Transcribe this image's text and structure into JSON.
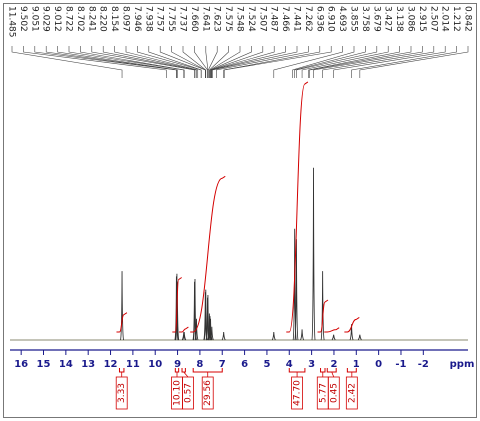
{
  "chart_data": {
    "type": "nmr",
    "x_label": "ppm",
    "xlim": [
      16.5,
      -4
    ],
    "xticks": [
      16,
      15,
      14,
      13,
      12,
      11,
      10,
      9,
      8,
      7,
      6,
      5,
      4,
      3,
      2,
      1,
      0,
      -1,
      -2
    ],
    "ylim": [
      0,
      100
    ],
    "peak_labels": [
      11.485,
      9.502,
      9.051,
      9.029,
      9.012,
      8.722,
      8.702,
      8.241,
      {
        "value": 8.22,
        "label": "8.220"
      },
      8.154,
      8.097,
      7.946,
      7.938,
      7.757,
      7.755,
      7.737,
      {
        "value": 7.66,
        "label": "7.660"
      },
      7.641,
      7.623,
      7.575,
      7.548,
      7.524,
      7.507,
      7.487,
      7.466,
      7.441,
      7.262,
      6.936,
      {
        "value": 6.91,
        "label": "6.910"
      },
      4.693,
      3.855,
      3.758,
      3.679,
      3.427,
      3.138,
      3.086,
      2.915,
      2.507,
      2.014,
      1.212,
      0.842
    ],
    "peaks": {
      "color": "#333333",
      "x": [
        11.485,
        9.051,
        9.029,
        9.012,
        8.722,
        8.702,
        8.241,
        8.22,
        8.154,
        7.757,
        7.737,
        7.66,
        7.641,
        7.575,
        7.548,
        7.524,
        7.466,
        6.936,
        4.693,
        3.758,
        3.679,
        3.427,
        2.915,
        2.507,
        2.014,
        1.212,
        0.842
      ],
      "values": [
        26,
        24,
        25,
        22,
        3,
        3,
        22,
        23,
        8,
        18,
        19,
        16,
        17,
        10,
        9,
        8,
        5,
        3,
        3,
        42,
        38,
        4,
        65,
        26,
        2,
        6,
        2
      ]
    },
    "integrals": {
      "color": "#d40000",
      "from": [
        11.6,
        9.1,
        8.8,
        8.3,
        4.0,
        2.6,
        2.3,
        1.4
      ],
      "to": [
        11.4,
        8.95,
        8.65,
        7.0,
        3.3,
        2.4,
        1.9,
        1.0
      ],
      "values": [
        3.33,
        10.1,
        0.57,
        29.56,
        47.7,
        5.77,
        0.45,
        2.42
      ],
      "value_labels": [
        "3.33",
        "10.10",
        "0.57",
        "29.56",
        "47.70",
        "5.77",
        "0.45",
        "2.42"
      ]
    }
  }
}
